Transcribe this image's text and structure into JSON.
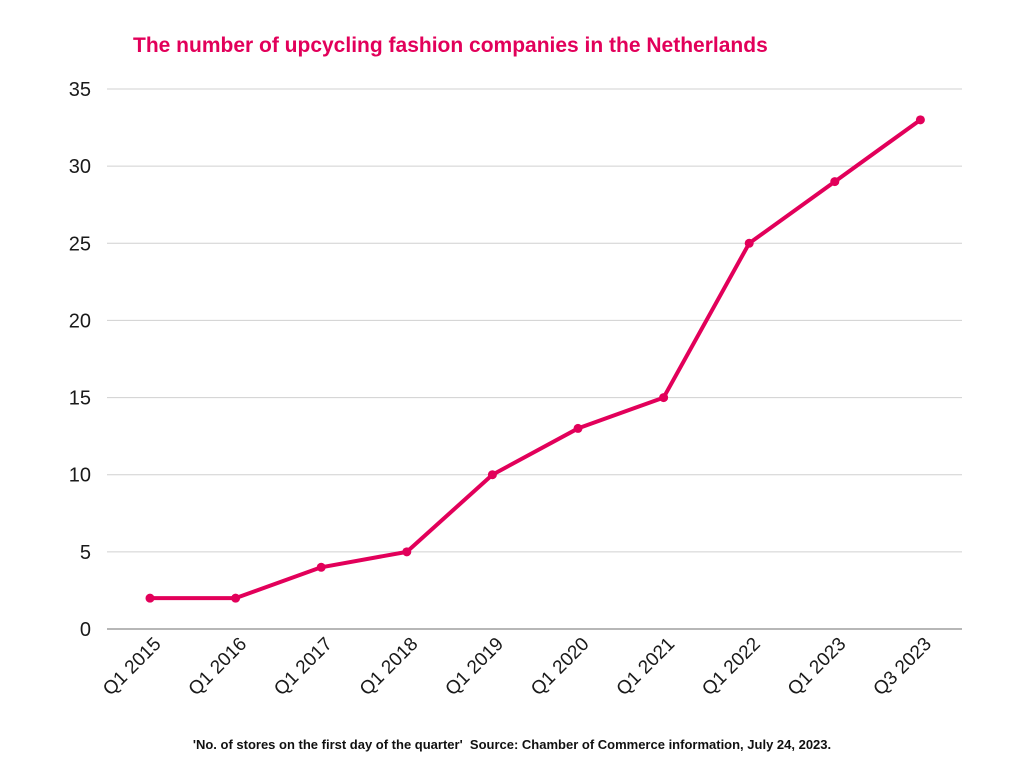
{
  "chart_data": {
    "type": "line",
    "title": "The number of upcycling fashion companies in the Netherlands",
    "footnote": "'No. of stores on the first day of the quarter'  Source: Chamber of Commerce information, July 24, 2023.",
    "categories": [
      "Q1 2015",
      "Q1 2016",
      "Q1 2017",
      "Q1 2018",
      "Q1 2019",
      "Q1 2020",
      "Q1 2021",
      "Q1 2022",
      "Q1 2023",
      "Q3 2023"
    ],
    "series": [
      {
        "values": [
          2,
          2,
          4,
          5,
          10,
          13,
          15,
          25,
          29,
          33
        ],
        "color": "#e2005a"
      }
    ],
    "ylim": [
      0,
      35
    ],
    "yticks": [
      0,
      5,
      10,
      15,
      20,
      25,
      30,
      35
    ],
    "grid": true,
    "legend": "none"
  }
}
